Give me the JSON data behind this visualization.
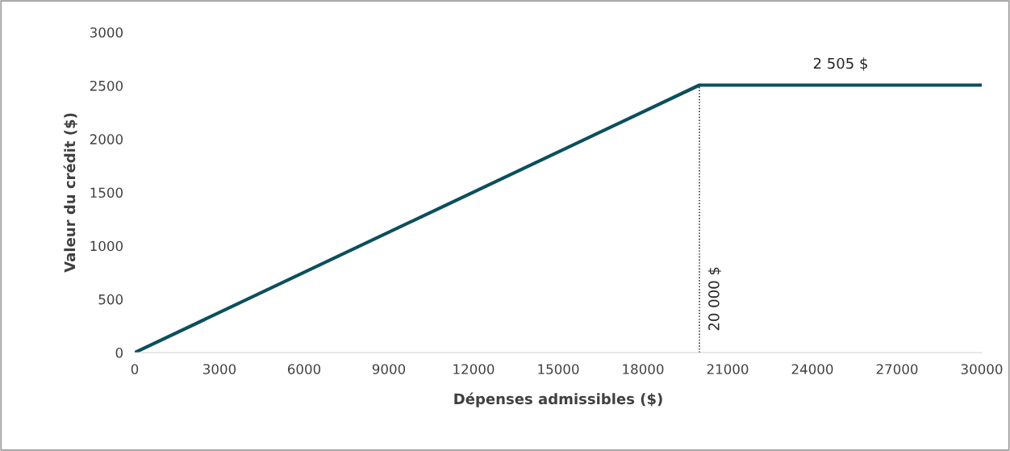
{
  "chart_data": {
    "type": "line",
    "xlabel": "Dépenses admissibles ($)",
    "ylabel": "Valeur du crédit ($)",
    "xlim": [
      0,
      30000
    ],
    "xticks": [
      0,
      3000,
      6000,
      9000,
      12000,
      15000,
      18000,
      21000,
      24000,
      27000,
      30000
    ],
    "ylim": [
      0,
      3000
    ],
    "yticks": [
      0,
      500,
      1000,
      1500,
      2000,
      2500,
      3000
    ],
    "grid": false,
    "legend": false,
    "series": [
      {
        "x": [
          0,
          20000,
          30000
        ],
        "values": [
          0,
          2505,
          2505
        ],
        "color": "#0b4f5c",
        "line_style": "solid"
      },
      {
        "x": [
          20000,
          20000
        ],
        "values": [
          0,
          2505
        ],
        "color": "#000000",
        "line_style": "dotted"
      }
    ],
    "annotations": [
      {
        "text": "2 505 $",
        "x": 25000,
        "y": 2505
      },
      {
        "text": "20 000 $",
        "x": 20000,
        "y": 200
      }
    ]
  }
}
